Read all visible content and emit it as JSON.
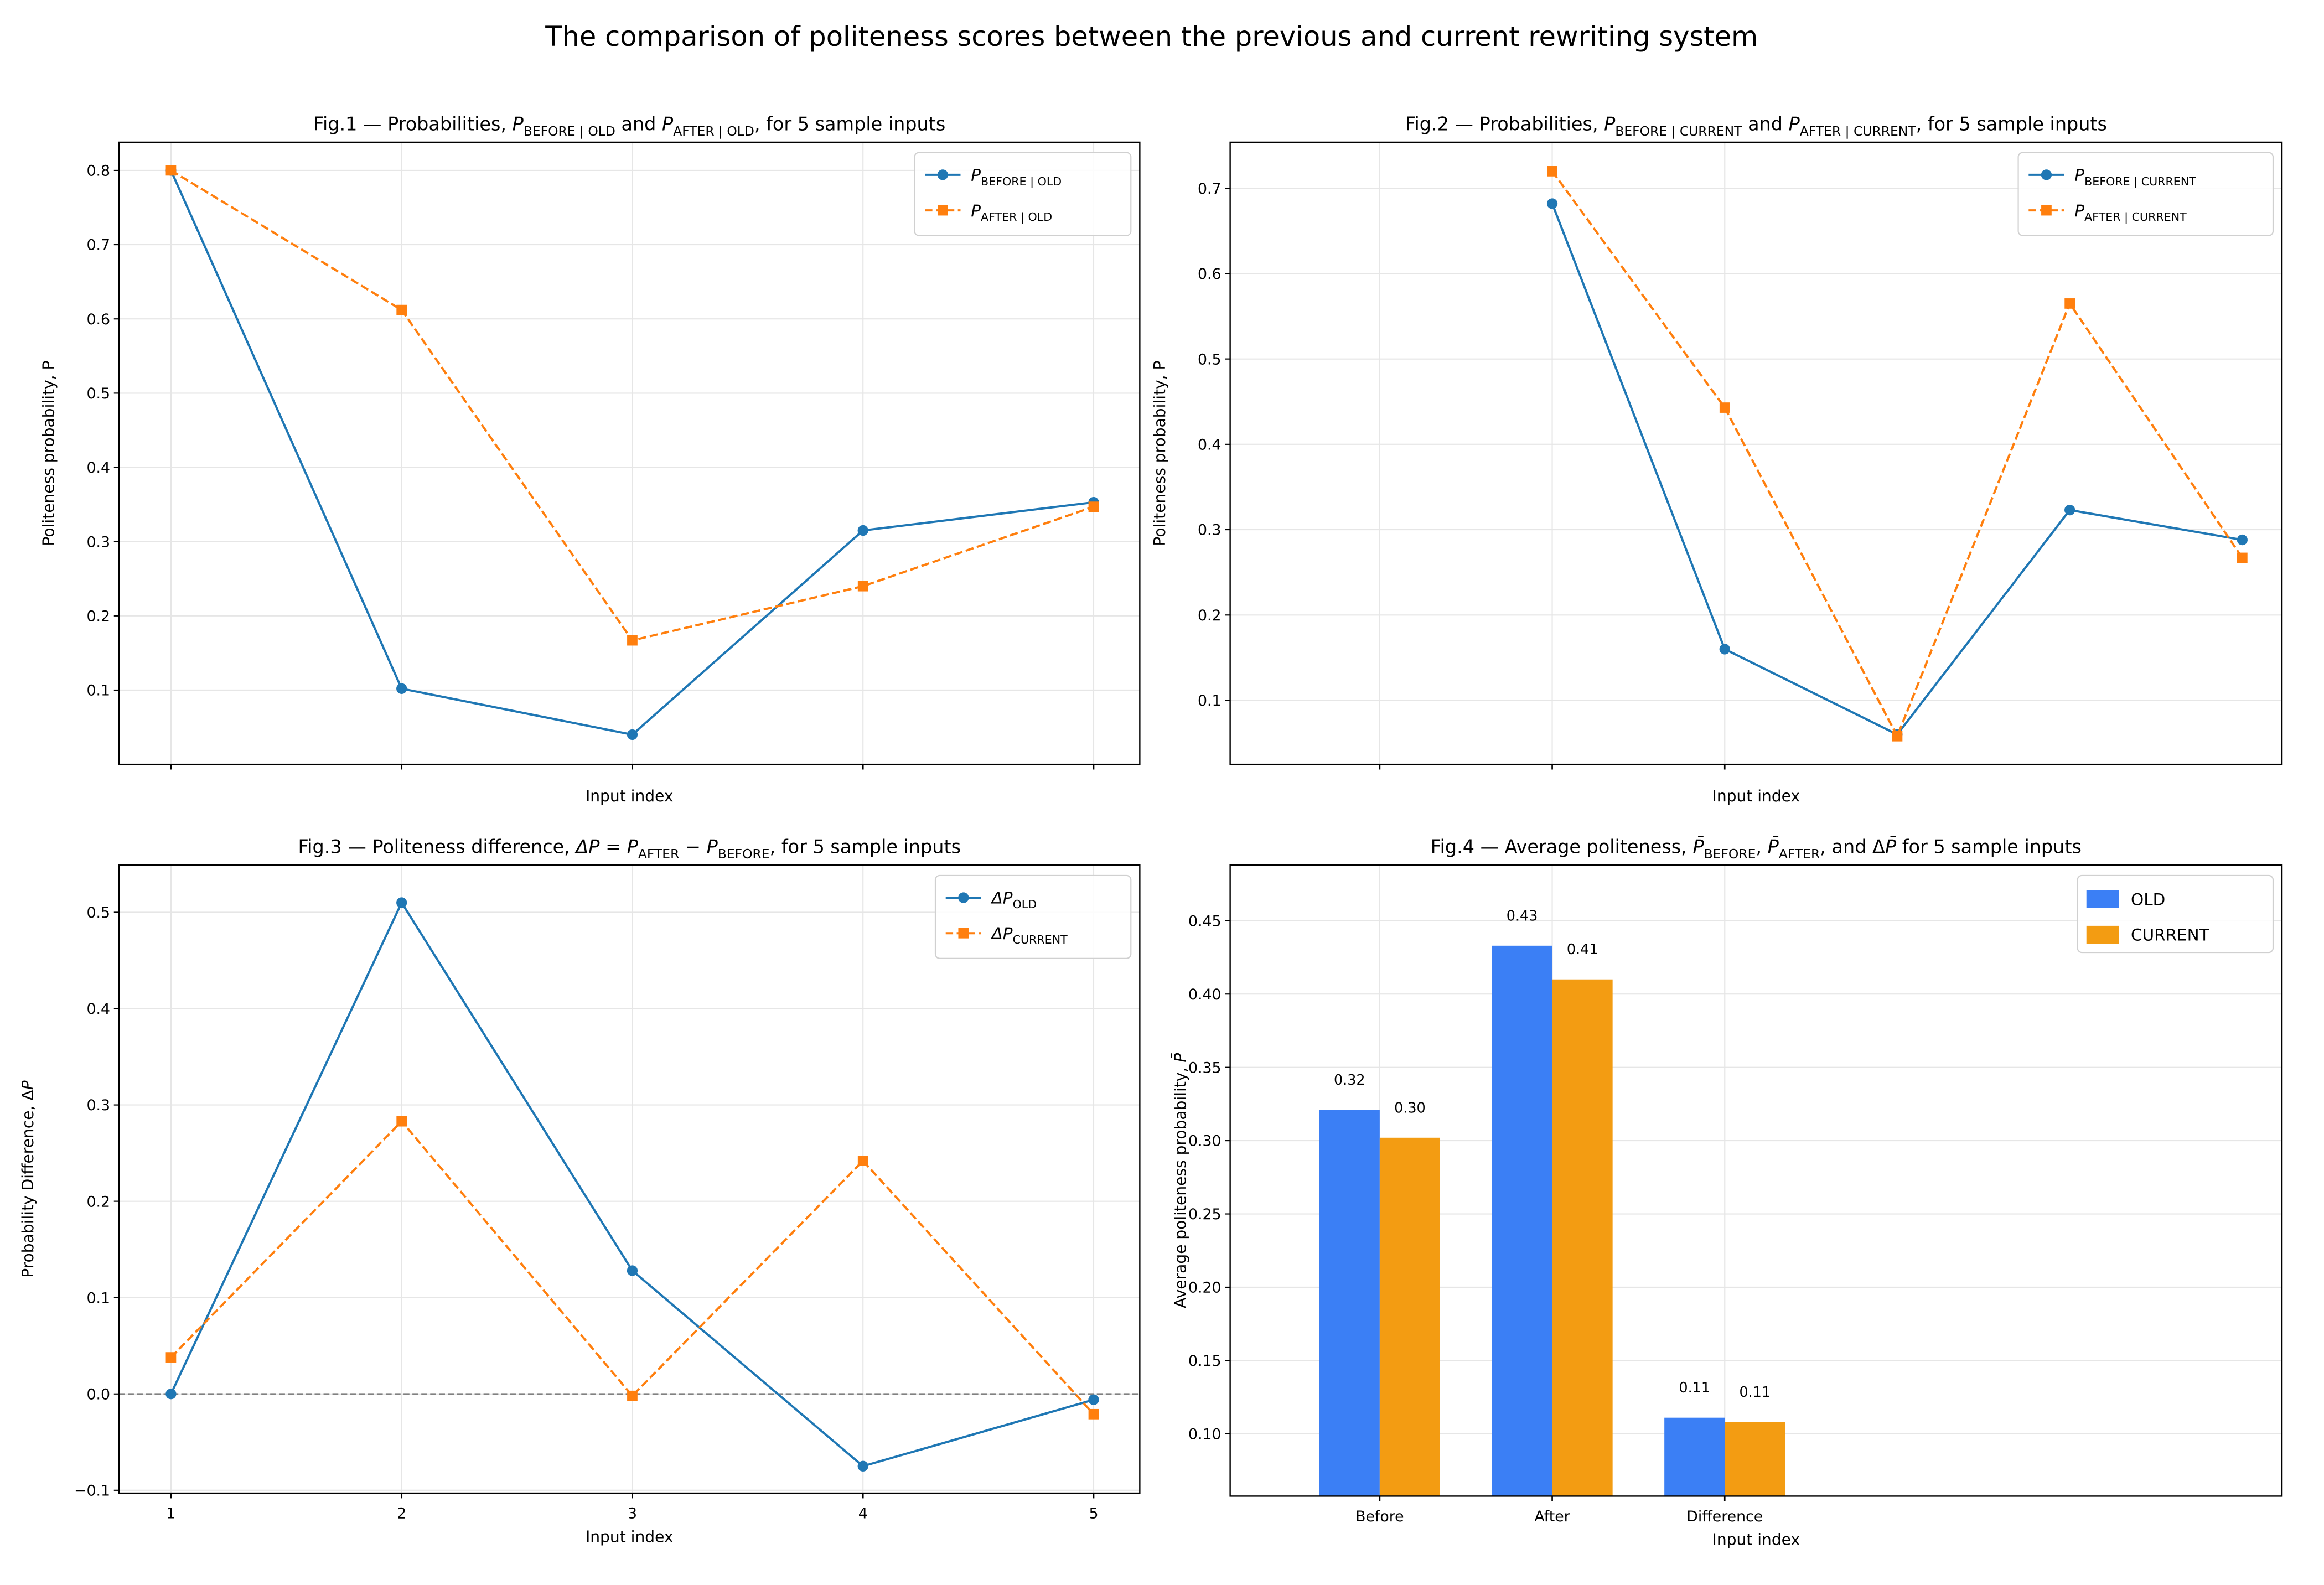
{
  "suptitle": "The comparison of politeness scores between the previous and current rewriting system",
  "colors": {
    "blue_line": "#1f77b4",
    "orange_line": "#ff7f0e",
    "bar_old": "#3b7ff5",
    "bar_current": "#f39c12",
    "zero_line": "#808080"
  },
  "chart_data": [
    {
      "type": "line",
      "title": [
        [
          "Fig.1 — Probabilities, ",
          ""
        ],
        [
          "P",
          "i"
        ],
        [
          "BEFORE | OLD",
          "sub"
        ],
        [
          " and ",
          ""
        ],
        [
          "P",
          "i"
        ],
        [
          "AFTER | OLD",
          "sub"
        ],
        [
          ", for 5 sample inputs",
          ""
        ]
      ],
      "xlabel": [
        [
          "Input index",
          ""
        ]
      ],
      "ylabel": [
        [
          "Politeness probability, P",
          ""
        ]
      ],
      "xlim": [
        0.775,
        5.2
      ],
      "ylim": [
        0.0,
        0.838
      ],
      "xticks": [
        1,
        2,
        3,
        4,
        5
      ],
      "xtick_labels_visible": false,
      "yticks": [
        0.1,
        0.2,
        0.3,
        0.4,
        0.5,
        0.6,
        0.7,
        0.8
      ],
      "ytick_labels": [
        "0.1",
        "0.2",
        "0.3",
        "0.4",
        "0.5",
        "0.6",
        "0.7",
        "0.8"
      ],
      "grid": true,
      "legend": "top-right",
      "x": [
        1,
        2,
        3,
        4,
        5
      ],
      "series": [
        {
          "name": [
            [
              "P",
              "i"
            ],
            [
              "BEFORE | OLD",
              "sub"
            ]
          ],
          "values": [
            0.8,
            0.102,
            0.04,
            0.315,
            0.353
          ],
          "marker": "circle",
          "dash": false
        },
        {
          "name": [
            [
              "P",
              "i"
            ],
            [
              "AFTER | OLD",
              "sub"
            ]
          ],
          "values": [
            0.8,
            0.612,
            0.167,
            0.24,
            0.347
          ],
          "marker": "square",
          "dash": true
        }
      ]
    },
    {
      "type": "line",
      "title": [
        [
          "Fig.2 — Probabilities, ",
          ""
        ],
        [
          "P",
          "i"
        ],
        [
          "BEFORE | CURRENT",
          "sub"
        ],
        [
          " and ",
          ""
        ],
        [
          "P",
          "i"
        ],
        [
          "AFTER | CURRENT",
          "sub"
        ],
        [
          ", for 5 sample inputs",
          ""
        ]
      ],
      "xlabel": [
        [
          "Input index",
          ""
        ]
      ],
      "ylabel": [
        [
          "Politeness probability, P",
          ""
        ]
      ],
      "xlim": [
        -0.867,
        5.23
      ],
      "ylim": [
        0.025,
        0.754
      ],
      "xticks": [
        0,
        1,
        2
      ],
      "xtick_labels_visible": false,
      "yticks": [
        0.1,
        0.2,
        0.3,
        0.4,
        0.5,
        0.6,
        0.7
      ],
      "ytick_labels": [
        "0.1",
        "0.2",
        "0.3",
        "0.4",
        "0.5",
        "0.6",
        "0.7"
      ],
      "grid": true,
      "legend": "top-right",
      "x": [
        1,
        2,
        3,
        4,
        5
      ],
      "series": [
        {
          "name": [
            [
              "P",
              "i"
            ],
            [
              "BEFORE | CURRENT",
              "sub"
            ]
          ],
          "values": [
            0.682,
            0.16,
            0.06,
            0.323,
            0.288
          ],
          "marker": "circle",
          "dash": false
        },
        {
          "name": [
            [
              "P",
              "i"
            ],
            [
              "AFTER | CURRENT",
              "sub"
            ]
          ],
          "values": [
            0.72,
            0.443,
            0.058,
            0.565,
            0.267
          ],
          "marker": "square",
          "dash": true
        }
      ]
    },
    {
      "type": "line",
      "title": [
        [
          "Fig.3 — Politeness difference, ",
          ""
        ],
        [
          "ΔP",
          "i"
        ],
        [
          " = ",
          ""
        ],
        [
          "P",
          "i"
        ],
        [
          "AFTER",
          "sub"
        ],
        [
          " − ",
          ""
        ],
        [
          "P",
          "i"
        ],
        [
          "BEFORE",
          "sub"
        ],
        [
          ", for 5 sample inputs",
          ""
        ]
      ],
      "xlabel": [
        [
          "Input index",
          ""
        ]
      ],
      "ylabel": [
        [
          "Probability Difference, Δ",
          ""
        ],
        [
          "P",
          "i"
        ]
      ],
      "xlim": [
        0.775,
        5.2
      ],
      "ylim": [
        -0.103,
        0.549
      ],
      "xticks": [
        1,
        2,
        3,
        4,
        5
      ],
      "xtick_labels": [
        "1",
        "2",
        "3",
        "4",
        "5"
      ],
      "xtick_labels_visible": true,
      "yticks": [
        -0.1,
        0.0,
        0.1,
        0.2,
        0.3,
        0.4,
        0.5
      ],
      "ytick_labels": [
        "−0.1",
        "0.0",
        "0.1",
        "0.2",
        "0.3",
        "0.4",
        "0.5"
      ],
      "grid": true,
      "legend": "top-right",
      "zero_line": true,
      "x": [
        1,
        2,
        3,
        4,
        5
      ],
      "series": [
        {
          "name": [
            [
              "ΔP",
              "i"
            ],
            [
              "OLD",
              "sub"
            ]
          ],
          "values": [
            0.0,
            0.51,
            0.128,
            -0.075,
            -0.006
          ],
          "marker": "circle",
          "dash": false
        },
        {
          "name": [
            [
              "ΔP",
              "i"
            ],
            [
              "CURRENT",
              "sub"
            ]
          ],
          "values": [
            0.038,
            0.283,
            -0.002,
            0.242,
            -0.021
          ],
          "marker": "square",
          "dash": true
        }
      ]
    },
    {
      "type": "bar",
      "title": [
        [
          "Fig.4 — Average politeness, ",
          ""
        ],
        [
          "P̄",
          "i"
        ],
        [
          "BEFORE",
          "sub"
        ],
        [
          ", ",
          ""
        ],
        [
          "P̄",
          "i"
        ],
        [
          "AFTER",
          "sub"
        ],
        [
          ", and Δ",
          ""
        ],
        [
          "P̄",
          "i"
        ],
        [
          " for 5 sample inputs",
          ""
        ]
      ],
      "xlabel": [
        [
          "Input index",
          ""
        ]
      ],
      "ylabel": [
        [
          "Average politeness probability, ",
          ""
        ],
        [
          "P̄",
          "i"
        ]
      ],
      "xlim": [
        -0.867,
        5.23
      ],
      "ylim": [
        0.0575,
        0.488
      ],
      "categories": [
        "Before",
        "After",
        "Difference"
      ],
      "yticks": [
        0.1,
        0.15,
        0.2,
        0.25,
        0.3,
        0.35,
        0.4,
        0.45
      ],
      "ytick_labels": [
        "0.10",
        "0.15",
        "0.20",
        "0.25",
        "0.30",
        "0.35",
        "0.40",
        "0.45"
      ],
      "grid": true,
      "legend": "top-right",
      "bar_width": 0.35,
      "series": [
        {
          "name": [
            [
              "OLD",
              ""
            ]
          ],
          "values": [
            0.321,
            0.433,
            0.111
          ],
          "labels": [
            "0.32",
            "0.43",
            "0.11"
          ]
        },
        {
          "name": [
            [
              "CURRENT",
              ""
            ]
          ],
          "values": [
            0.302,
            0.41,
            0.108
          ],
          "labels": [
            "0.30",
            "0.41",
            "0.11"
          ]
        }
      ]
    }
  ]
}
